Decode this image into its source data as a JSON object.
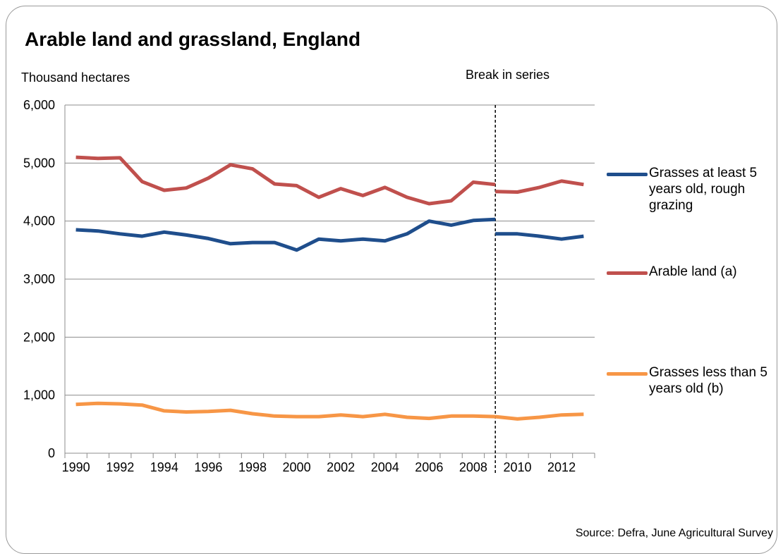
{
  "chart_data": {
    "type": "line",
    "title": "Arable land and grassland, England",
    "ylabel": "Thousand hectares",
    "xlabel": "",
    "ylim": [
      0,
      6000
    ],
    "y_ticks": [
      "0",
      "1,000",
      "2,000",
      "3,000",
      "4,000",
      "5,000",
      "6,000"
    ],
    "y_tick_values": [
      0,
      1000,
      2000,
      3000,
      4000,
      5000,
      6000
    ],
    "x_ticks": [
      "1990",
      "1992",
      "1994",
      "1996",
      "1998",
      "2000",
      "2002",
      "2004",
      "2006",
      "2008",
      "2010",
      "2012"
    ],
    "x": [
      1990,
      1991,
      1992,
      1993,
      1994,
      1995,
      1996,
      1997,
      1998,
      1999,
      2000,
      2001,
      2002,
      2003,
      2004,
      2005,
      2006,
      2007,
      2008,
      2009,
      2010,
      2011,
      2012,
      2013
    ],
    "xlim": [
      1989.5,
      2013.5
    ],
    "grid": "horizontal",
    "legend_position": "right",
    "break_in_series": {
      "label": "Break in series",
      "between": [
        2008,
        2009
      ]
    },
    "source": "Source: Defra, June Agricultural Survey",
    "series": [
      {
        "name": "Grasses at least 5 years old, rough grazing",
        "color": "#1f4e8c",
        "segments": [
          {
            "x": [
              1990,
              1991,
              1992,
              1993,
              1994,
              1995,
              1996,
              1997,
              1998,
              1999,
              2000,
              2001,
              2002,
              2003,
              2004,
              2005,
              2006,
              2007,
              2008,
              2009
            ],
            "values": [
              3850,
              3830,
              3780,
              3740,
              3810,
              3760,
              3700,
              3610,
              3630,
              3630,
              3500,
              3690,
              3660,
              3690,
              3660,
              3780,
              4000,
              3930,
              4010,
              4030
            ]
          },
          {
            "x": [
              2009,
              2010,
              2011,
              2012,
              2013
            ],
            "values": [
              3780,
              3780,
              3740,
              3690,
              3740
            ]
          }
        ]
      },
      {
        "name": "Arable land (a)",
        "color": "#c0504d",
        "segments": [
          {
            "x": [
              1990,
              1991,
              1992,
              1993,
              1994,
              1995,
              1996,
              1997,
              1998,
              1999,
              2000,
              2001,
              2002,
              2003,
              2004,
              2005,
              2006,
              2007,
              2008,
              2009
            ],
            "values": [
              5100,
              5080,
              5090,
              4680,
              4530,
              4570,
              4740,
              4970,
              4900,
              4640,
              4610,
              4410,
              4560,
              4440,
              4580,
              4410,
              4300,
              4350,
              4670,
              4630
            ]
          },
          {
            "x": [
              2009,
              2010,
              2011,
              2012,
              2013
            ],
            "values": [
              4510,
              4500,
              4580,
              4690,
              4630
            ]
          }
        ]
      },
      {
        "name": "Grasses less than 5 years old (b)",
        "color": "#f79646",
        "segments": [
          {
            "x": [
              1990,
              1991,
              1992,
              1993,
              1994,
              1995,
              1996,
              1997,
              1998,
              1999,
              2000,
              2001,
              2002,
              2003,
              2004,
              2005,
              2006,
              2007,
              2008,
              2009
            ],
            "values": [
              840,
              860,
              850,
              830,
              730,
              710,
              720,
              740,
              680,
              640,
              630,
              630,
              660,
              630,
              670,
              620,
              600,
              640,
              640,
              630
            ]
          },
          {
            "x": [
              2009,
              2010,
              2011,
              2012,
              2013
            ],
            "values": [
              630,
              590,
              620,
              660,
              670
            ]
          }
        ]
      }
    ]
  }
}
